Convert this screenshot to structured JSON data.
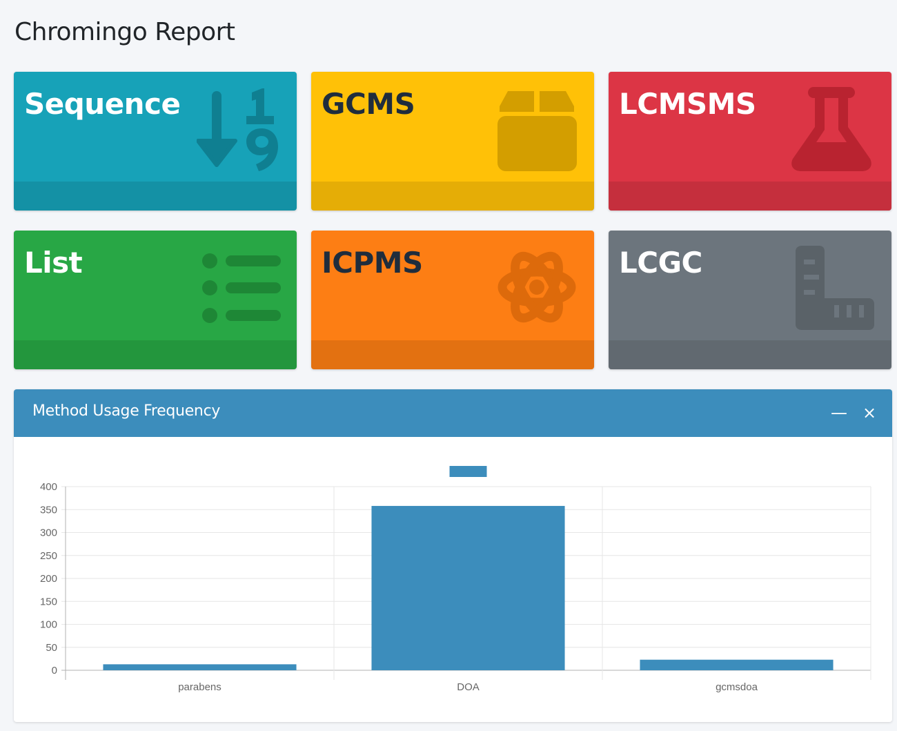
{
  "page": {
    "title": "Chromingo Report"
  },
  "tiles": [
    {
      "key": "sequence",
      "label": "Sequence",
      "icon": "sort-numeric-down-icon",
      "color": "#17a2b8"
    },
    {
      "key": "gcms",
      "label": "GCMS",
      "icon": "box-icon",
      "color": "#ffc107"
    },
    {
      "key": "lcmsms",
      "label": "LCMSMS",
      "icon": "flask-icon",
      "color": "#dc3545"
    },
    {
      "key": "list",
      "label": "List",
      "icon": "list-icon",
      "color": "#28a745"
    },
    {
      "key": "icpms",
      "label": "ICPMS",
      "icon": "atom-icon",
      "color": "#fd7e14"
    },
    {
      "key": "lcgc",
      "label": "LCGC",
      "icon": "ruler-icon",
      "color": "#6c757d"
    }
  ],
  "card": {
    "title": "Method Usage Frequency",
    "minimize_symbol": "—",
    "close_symbol": "×",
    "header_color": "#3c8dbc"
  },
  "chart_data": {
    "type": "bar",
    "categories": [
      "parabens",
      "DOA",
      "gcmsdoa"
    ],
    "series": [
      {
        "name": "",
        "values": [
          13,
          358,
          23
        ],
        "color": "#3c8dbc"
      }
    ],
    "yticks": [
      "0",
      "50",
      "100",
      "150",
      "200",
      "250",
      "300",
      "350",
      "400"
    ],
    "ylim": [
      0,
      400
    ],
    "grid": true,
    "legend": "top-center"
  }
}
